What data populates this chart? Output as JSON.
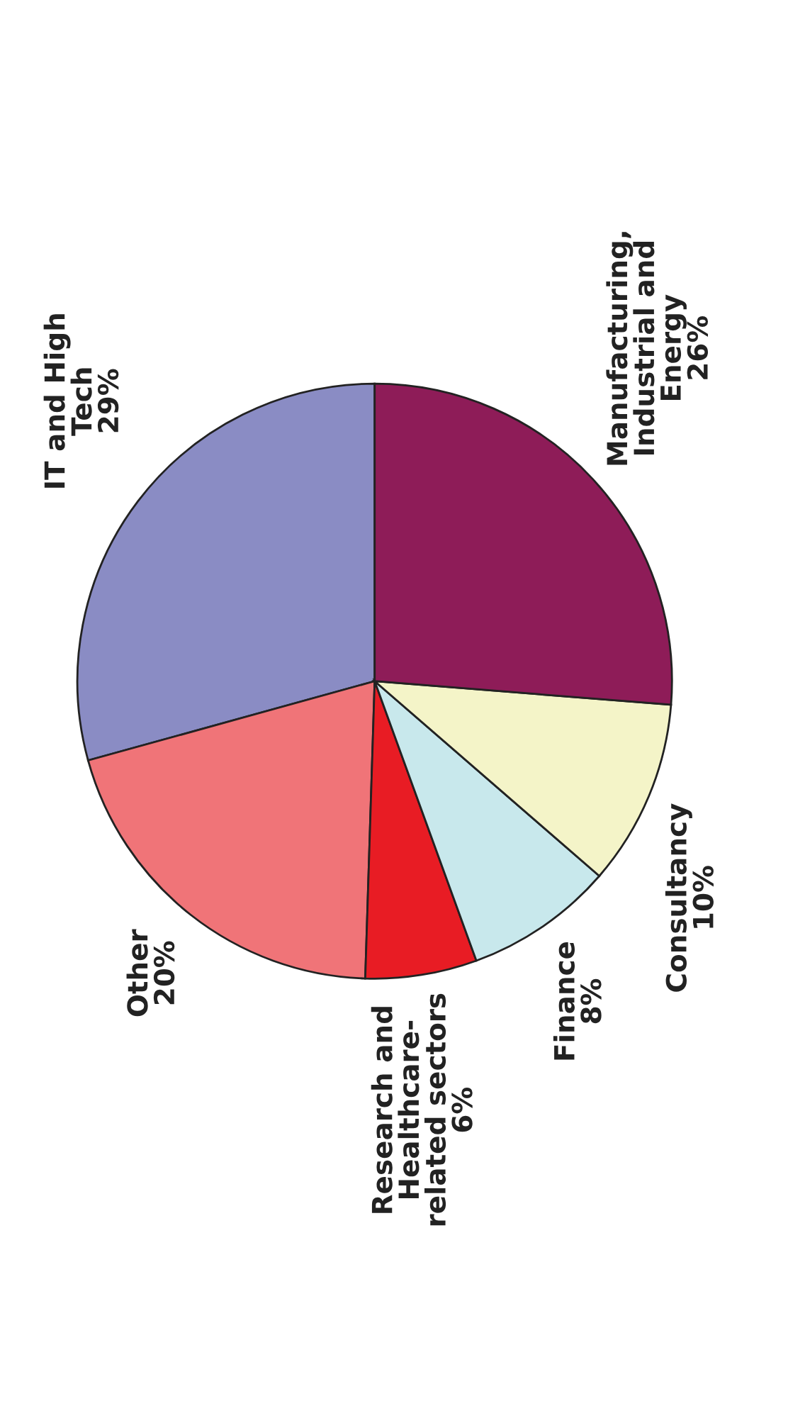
{
  "chart_data": {
    "type": "pie",
    "categories": [
      "IT and High\nTech",
      "Other",
      "Research and\nHealthcare-\nrelated sectors",
      "Finance",
      "Consultancy",
      "Manufacturing,\nIndustrial and\nEnergy"
    ],
    "values": [
      29,
      20,
      6,
      8,
      10,
      26
    ],
    "value_labels": [
      "29%",
      "20%",
      "6%",
      "8%",
      "10%",
      "26%"
    ],
    "colors": [
      "#8a8cc4",
      "#f07478",
      "#e81c24",
      "#c8e8ec",
      "#f4f4c8",
      "#8e1c58"
    ],
    "legend": false
  }
}
